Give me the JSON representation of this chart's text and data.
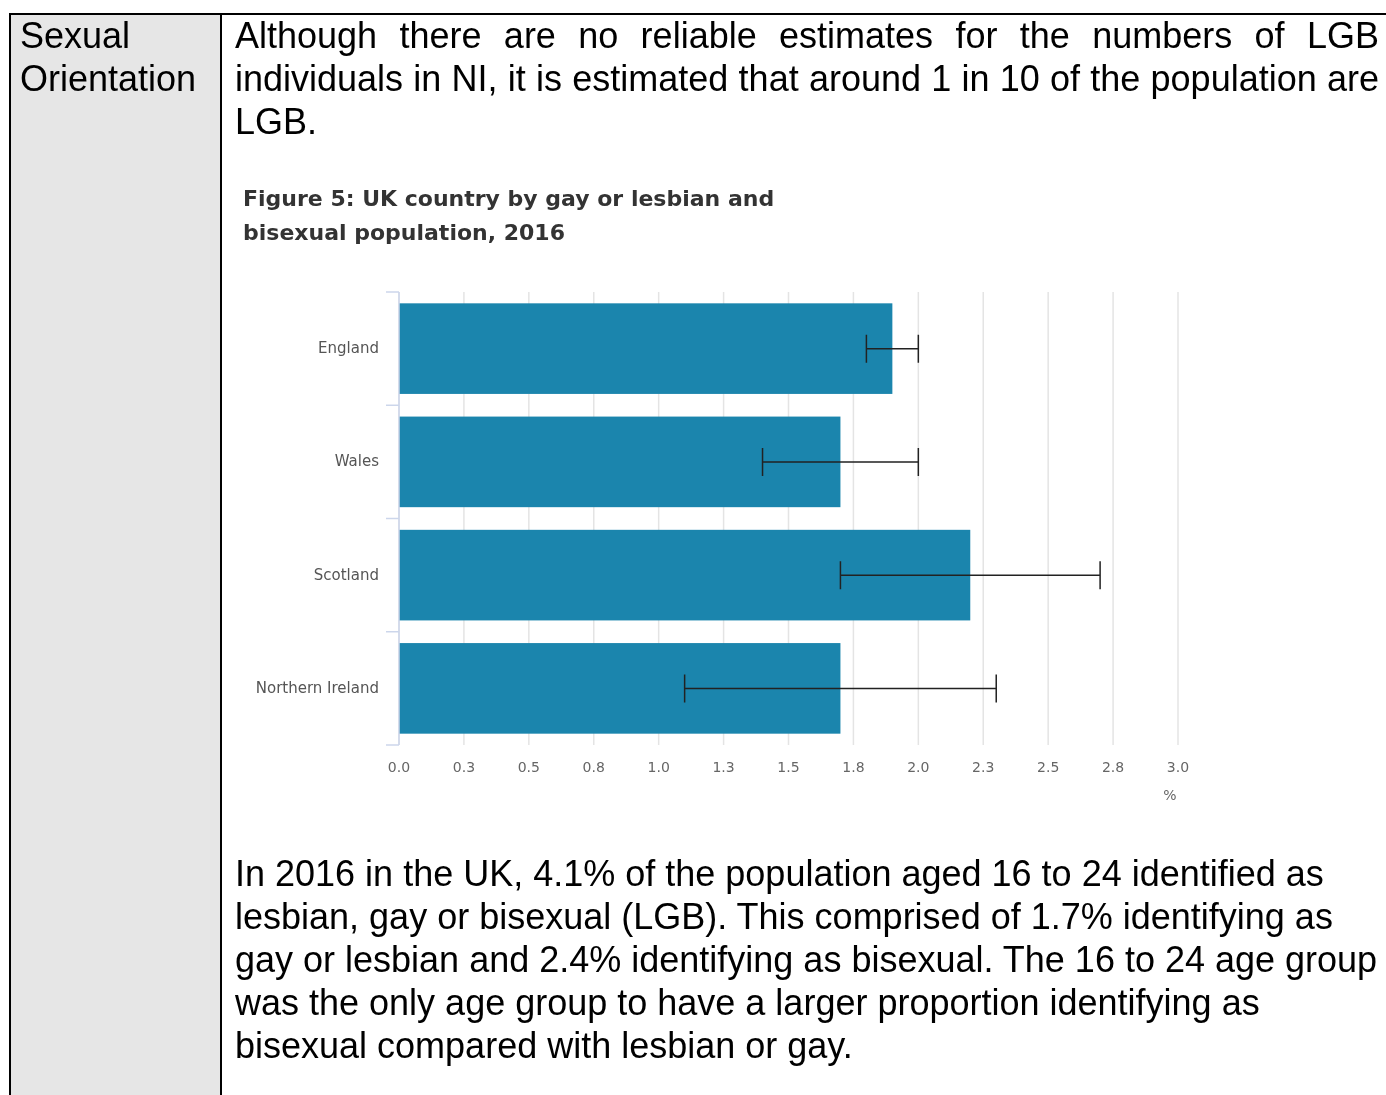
{
  "chart_data": {
    "type": "bar",
    "orientation": "horizontal",
    "title": "Figure 5: UK country by gay or lesbian and bisexual population, 2016",
    "xlabel": "%",
    "categories": [
      "England",
      "Wales",
      "Scotland",
      "Northern Ireland"
    ],
    "values": [
      1.9,
      1.7,
      2.2,
      1.7
    ],
    "errors": [
      0.1,
      0.3,
      0.5,
      0.6
    ],
    "color": "#1b85ad",
    "grid": "x",
    "xlim": [
      0,
      3
    ],
    "xticks": [
      {
        "value": 0,
        "label": "0.0"
      },
      {
        "value": 0.25,
        "label": "0.3"
      },
      {
        "value": 0.5,
        "label": "0.5"
      },
      {
        "value": 0.75,
        "label": "0.8"
      },
      {
        "value": 1,
        "label": "1.0"
      },
      {
        "value": 1.25,
        "label": "1.3"
      },
      {
        "value": 1.5,
        "label": "1.5"
      },
      {
        "value": 1.75,
        "label": "1.8"
      },
      {
        "value": 2,
        "label": "2.0"
      },
      {
        "value": 2.25,
        "label": "2.3"
      },
      {
        "value": 2.5,
        "label": "2.5"
      },
      {
        "value": 2.75,
        "label": "2.8"
      },
      {
        "value": 3,
        "label": "3.0"
      }
    ],
    "annotations": [
      "Sexual Orientation",
      "Although there are no reliable estimates for the numbers of LGB individuals in NI, it is estimated that around 1 in 10 of the population are LGB.",
      "In 2016 in the UK, 4.1% of the population aged 16 to 24 identified as lesbian, gay or bisexual (LGB). This comprised of 1.7% identifying as gay or lesbian and 2.4% identifying as bisexual. The 16 to 24 age group was the only age group to have a larger proportion identifying as bisexual compared with lesbian or gay."
    ]
  }
}
